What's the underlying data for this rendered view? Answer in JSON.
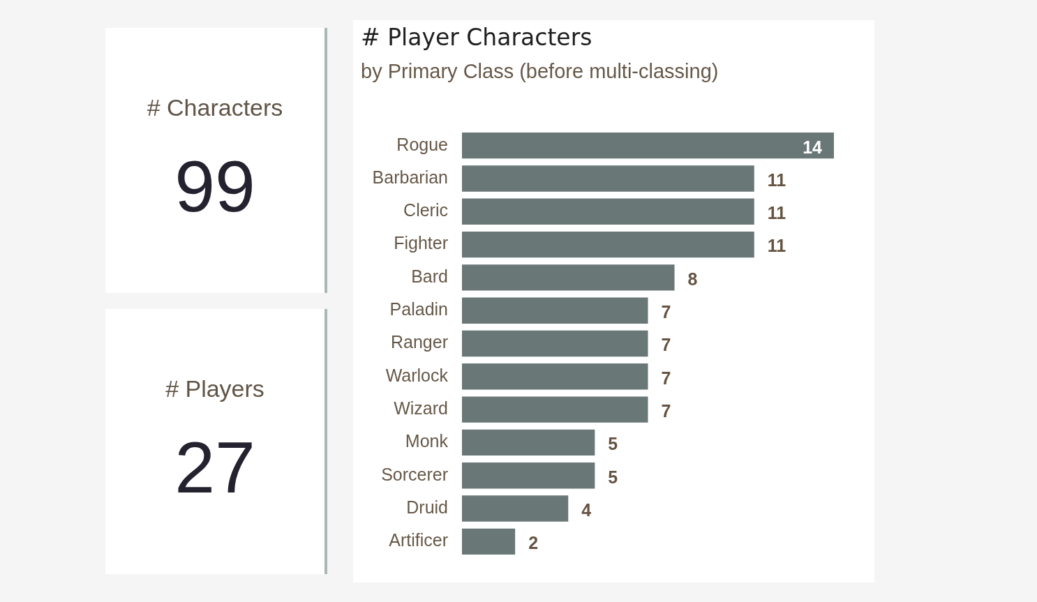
{
  "chart_data": [
    {
      "type": "other",
      "title": "# Characters",
      "annotations": [
        "99"
      ]
    },
    {
      "type": "other",
      "title": "# Players",
      "annotations": [
        "27"
      ]
    },
    {
      "type": "bar",
      "orientation": "horizontal",
      "title": "# Player Characters",
      "subtitle": "by Primary Class (before multi-classing)",
      "categories": [
        "Rogue",
        "Barbarian",
        "Cleric",
        "Fighter",
        "Bard",
        "Paladin",
        "Ranger",
        "Warlock",
        "Wizard",
        "Monk",
        "Sorcerer",
        "Druid",
        "Artificer"
      ],
      "values": [
        14,
        11,
        11,
        11,
        8,
        7,
        7,
        7,
        7,
        5,
        5,
        4,
        2
      ],
      "color": "#6a7777",
      "data_labels": true,
      "tick_labels": "y"
    }
  ]
}
